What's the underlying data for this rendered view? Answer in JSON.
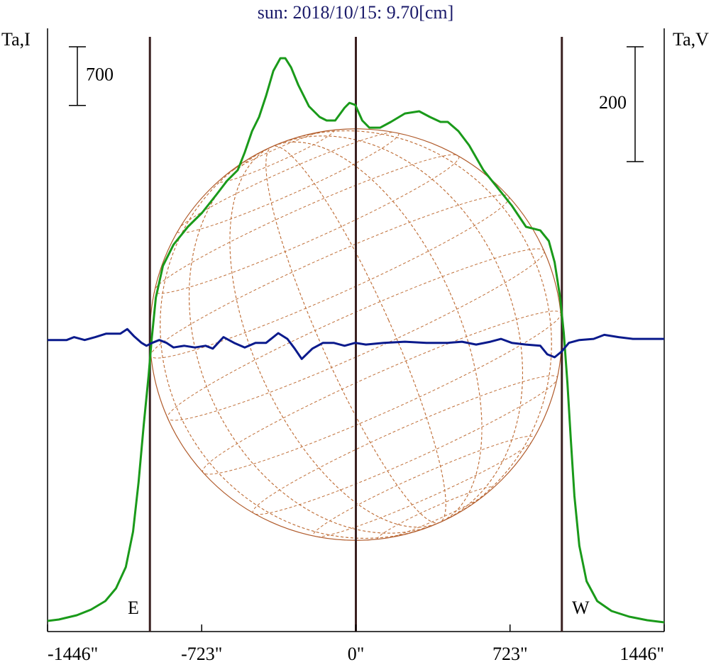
{
  "chart_data": {
    "type": "line",
    "title": "sun: 2018/10/15: 9.70[cm]",
    "y_label": "Ta,I",
    "y2_label": "Ta,V",
    "xlim": [
      -1446,
      1446
    ],
    "xticks": [
      {
        "value": -1446,
        "label": "-1446\""
      },
      {
        "value": -723,
        "label": "-723\""
      },
      {
        "value": 0,
        "label": "0\""
      },
      {
        "value": 723,
        "label": "723\""
      },
      {
        "value": 1446,
        "label": "1446\""
      }
    ],
    "ylim": [
      0,
      7200
    ],
    "y2lim": [
      -507,
      544
    ],
    "scale_bars": [
      {
        "axis": "y",
        "value": 700
      },
      {
        "axis": "y2",
        "value": 200
      }
    ],
    "vlines": [
      -966,
      0,
      966
    ],
    "limb_labels": [
      "E",
      "W"
    ],
    "series": [
      {
        "name": "I",
        "color": "#1a9a1a",
        "x": [
          -1446,
          -1393,
          -1309,
          -1242,
          -1175,
          -1125,
          -1079,
          -1045,
          -1019,
          -995,
          -972,
          -958,
          -938,
          -905,
          -855,
          -788,
          -721,
          -655,
          -604,
          -554,
          -521,
          -487,
          -454,
          -421,
          -387,
          -354,
          -331,
          -304,
          -270,
          -220,
          -170,
          -137,
          -97,
          -53,
          -30,
          -3,
          30,
          63,
          114,
          164,
          230,
          297,
          347,
          397,
          431,
          481,
          531,
          598,
          665,
          731,
          798,
          865,
          905,
          932,
          958,
          975,
          992,
          1008,
          1025,
          1048,
          1082,
          1132,
          1199,
          1282,
          1366,
          1446
        ],
        "values": [
          127,
          144,
          195,
          262,
          364,
          516,
          770,
          1193,
          1785,
          2462,
          3054,
          3477,
          3985,
          4365,
          4619,
          4831,
          5000,
          5212,
          5381,
          5508,
          5719,
          5973,
          6142,
          6396,
          6692,
          6844,
          6844,
          6734,
          6523,
          6269,
          6142,
          6100,
          6100,
          6252,
          6311,
          6286,
          6100,
          6015,
          6015,
          6083,
          6184,
          6210,
          6142,
          6083,
          6083,
          5973,
          5804,
          5508,
          5296,
          5085,
          4831,
          4788,
          4662,
          4408,
          3985,
          3562,
          2970,
          2293,
          1616,
          1024,
          601,
          364,
          245,
          178,
          135,
          110
        ]
      },
      {
        "name": "V",
        "color": "#0a1a8c",
        "axis": "y2",
        "x": [
          -1446,
          -1356,
          -1322,
          -1272,
          -1222,
          -1172,
          -1105,
          -1072,
          -1039,
          -1005,
          -982,
          -955,
          -922,
          -888,
          -855,
          -805,
          -755,
          -705,
          -671,
          -621,
          -571,
          -521,
          -471,
          -421,
          -364,
          -321,
          -287,
          -254,
          -204,
          -154,
          -104,
          -53,
          -3,
          47,
          130,
          230,
          331,
          431,
          498,
          564,
          631,
          681,
          731,
          798,
          865,
          898,
          932,
          965,
          999,
          1048,
          1115,
          1165,
          1232,
          1299,
          1446
        ],
        "values": [
          1,
          1,
          6,
          1,
          6,
          12,
          12,
          20,
          7,
          -4,
          -9,
          -4,
          1,
          -4,
          -12,
          -9,
          -12,
          -9,
          -14,
          6,
          -4,
          -12,
          -4,
          -4,
          13,
          3,
          -14,
          -32,
          -14,
          -4,
          -4,
          -9,
          -4,
          -7,
          -4,
          -2,
          -4,
          -4,
          -2,
          -7,
          -2,
          3,
          -4,
          -7,
          -9,
          -24,
          -29,
          -19,
          -4,
          1,
          3,
          10,
          6,
          3,
          3
        ]
      }
    ]
  }
}
